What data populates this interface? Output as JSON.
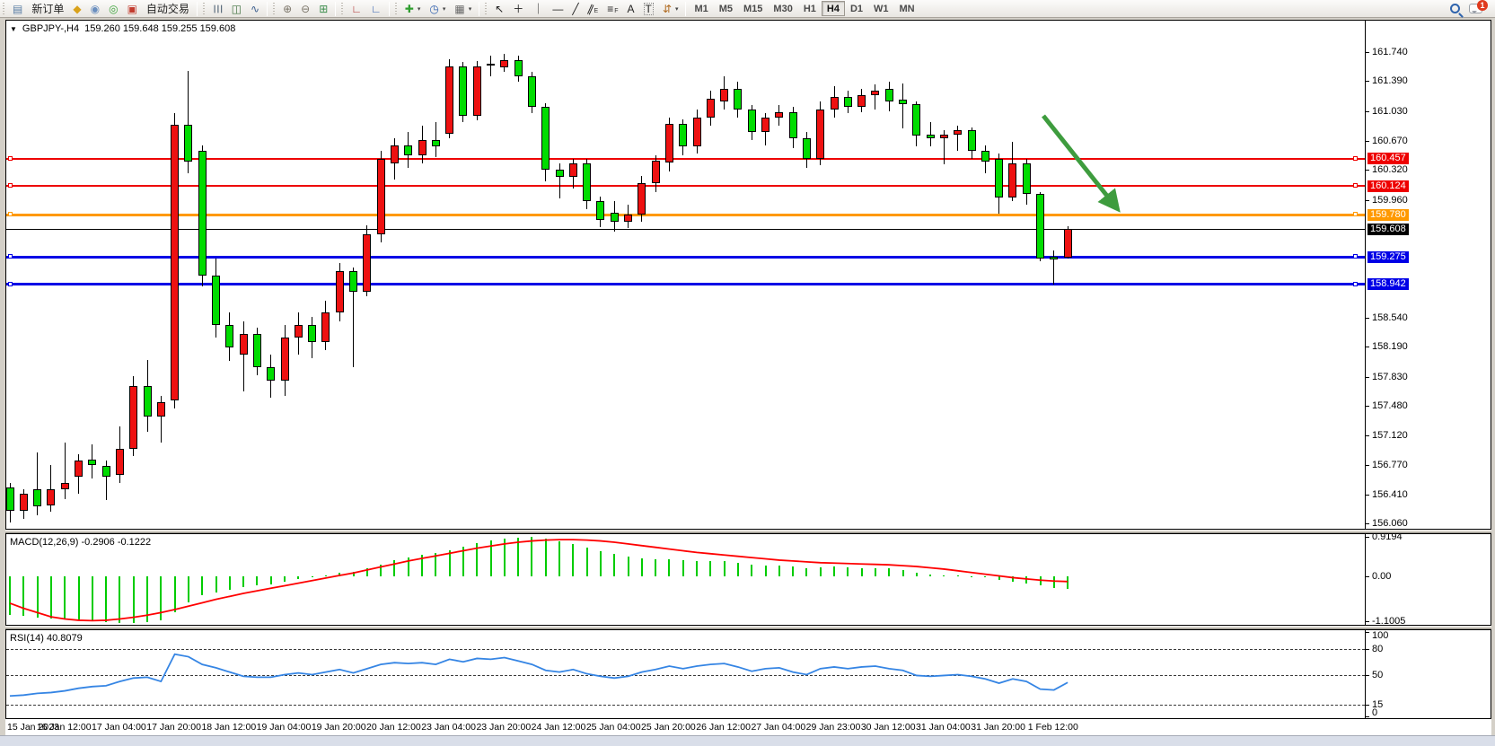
{
  "toolbar": {
    "groups": [
      {
        "items": [
          {
            "n": "window-menu-icon",
            "g": "▤",
            "c": "#5b7fa6"
          },
          {
            "n": "new-order-button",
            "l": "新订单"
          },
          {
            "n": "mql-community-icon",
            "g": "◆",
            "c": "#d9a21b"
          },
          {
            "n": "profile-icon",
            "g": "◉",
            "c": "#6b8fbf"
          },
          {
            "n": "signals-icon",
            "g": "◎",
            "c": "#3fa63f"
          },
          {
            "n": "autotrade-icon",
            "g": "▣",
            "c": "#c23b2e"
          },
          {
            "n": "autotrade-button",
            "l": "自动交易"
          }
        ]
      },
      {
        "items": [
          {
            "n": "bar-chart-icon",
            "g": "☰",
            "c": "#5a6b7c",
            "rot": 90
          },
          {
            "n": "candlestick-chart-icon",
            "g": "◫",
            "c": "#3c6e3c"
          },
          {
            "n": "line-chart-icon",
            "g": "∿",
            "c": "#3c5f8f"
          }
        ]
      },
      {
        "items": [
          {
            "n": "zoom-in-icon",
            "g": "⊕",
            "c": "#7a7468"
          },
          {
            "n": "zoom-out-icon",
            "g": "⊖",
            "c": "#7a7468"
          },
          {
            "n": "tile-windows-icon",
            "g": "⊞",
            "c": "#3f8f4f"
          }
        ]
      },
      {
        "items": [
          {
            "n": "auto-scroll-icon",
            "g": "∟",
            "c": "#b03030"
          },
          {
            "n": "chart-shift-icon",
            "g": "∟",
            "c": "#305fb0"
          }
        ]
      },
      {
        "items": [
          {
            "n": "add-indicator-icon",
            "g": "✚",
            "c": "#2f9e2f",
            "dd": true
          },
          {
            "n": "period-clock-icon",
            "g": "◷",
            "c": "#2f5fae",
            "dd": true
          },
          {
            "n": "template-icon",
            "g": "▦",
            "c": "#6a6a6a",
            "dd": true
          }
        ]
      },
      {
        "items": [
          {
            "n": "cursor-icon",
            "g": "↖",
            "c": "#222"
          },
          {
            "n": "crosshair-icon",
            "g": "＋",
            "c": "#222"
          },
          {
            "n": "vertical-line-icon",
            "g": "｜",
            "c": "#222"
          },
          {
            "n": "horizontal-line-icon",
            "g": "—",
            "c": "#222"
          },
          {
            "n": "trendline-icon",
            "g": "╱",
            "c": "#222"
          },
          {
            "n": "equidistant-channel-icon",
            "g": "∥",
            "c": "#222",
            "rot": 24,
            "sub": "E"
          },
          {
            "n": "fibonacci-icon",
            "g": "≡",
            "c": "#222",
            "sub": "F"
          },
          {
            "n": "text-icon",
            "g": "A",
            "c": "#222"
          },
          {
            "n": "text-label-icon",
            "g": "T",
            "c": "#222",
            "boxed": true
          },
          {
            "n": "arrows-shapes-icon",
            "g": "⇵",
            "c": "#b06a1f",
            "dd": true
          }
        ]
      }
    ],
    "timeframes": [
      "M1",
      "M5",
      "M15",
      "M30",
      "H1",
      "H4",
      "D1",
      "W1",
      "MN"
    ],
    "active_timeframe": "H4",
    "notification_badge": "1"
  },
  "chart": {
    "title_symbol": "GBPJPY-,H4",
    "title_ohlc": "159.260 159.648 159.255 159.608",
    "price_ticks": [
      "161.740",
      "161.390",
      "161.030",
      "160.670",
      "160.320",
      "159.960",
      "158.540",
      "158.190",
      "157.830",
      "157.480",
      "157.120",
      "156.770",
      "156.410",
      "156.060"
    ],
    "levels": [
      {
        "value": 159.608,
        "label": "159.608",
        "color": "#000000",
        "weight": 1,
        "handles": false
      },
      {
        "value": 160.457,
        "label": "160.457",
        "color": "#ee0000",
        "weight": 2,
        "handles": true
      },
      {
        "value": 160.124,
        "label": "160.124",
        "color": "#ee0000",
        "weight": 2,
        "handles": true
      },
      {
        "value": 159.78,
        "label": "159.780",
        "color": "#ff9900",
        "weight": 3,
        "handles": true
      },
      {
        "value": 159.275,
        "label": "159.275",
        "color": "#0000e6",
        "weight": 3,
        "handles": true
      },
      {
        "value": 158.942,
        "label": "158.942",
        "color": "#0000e6",
        "weight": 3,
        "handles": true
      }
    ],
    "up_color": "#ee1111",
    "down_color": "#00dc00",
    "arrow_color": "#3e9c3e"
  },
  "macd": {
    "label": "MACD(12,26,9)",
    "values": "-0.2906 -0.1222",
    "axis": [
      {
        "v": 0.9194,
        "t": "0.9194"
      },
      {
        "v": 0,
        "t": "0.00"
      },
      {
        "v": -1.1005,
        "t": "-1.1005"
      }
    ],
    "hist_color": "#00cc00",
    "signal_color": "#ff0000"
  },
  "rsi": {
    "label": "RSI(14)",
    "value": "40.8079",
    "axis": [
      {
        "v": 100,
        "t": "100",
        "dash": false
      },
      {
        "v": 80,
        "t": "80",
        "dash": true
      },
      {
        "v": 50,
        "t": "50",
        "dash": true
      },
      {
        "v": 15,
        "t": "15",
        "dash": true
      },
      {
        "v": 0,
        "t": "0",
        "dash": false
      }
    ],
    "line_color": "#3585e4"
  },
  "chart_data": {
    "type": "candlestick",
    "symbol": "GBPJPY-",
    "timeframe": "H4",
    "last_ohlc": {
      "open": 159.26,
      "high": 159.648,
      "low": 159.255,
      "close": 159.608
    },
    "y_range": [
      155.98,
      161.92
    ],
    "time_labels": [
      "15 Jan 2023",
      "16 Jan 12:00",
      "17 Jan 04:00",
      "17 Jan 20:00",
      "18 Jan 12:00",
      "19 Jan 04:00",
      "19 Jan 20:00",
      "20 Jan 12:00",
      "23 Jan 04:00",
      "23 Jan 20:00",
      "24 Jan 12:00",
      "25 Jan 04:00",
      "25 Jan 20:00",
      "26 Jan 12:00",
      "27 Jan 04:00",
      "29 Jan 23:00",
      "30 Jan 12:00",
      "31 Jan 04:00",
      "31 Jan 20:00",
      "1 Feb 12:00"
    ],
    "bars_per_label": 4,
    "candles": [
      [
        156.5,
        156.55,
        156.08,
        156.22
      ],
      [
        156.22,
        156.48,
        156.12,
        156.42
      ],
      [
        156.48,
        156.92,
        156.16,
        156.27
      ],
      [
        156.28,
        156.77,
        156.2,
        156.47
      ],
      [
        156.48,
        157.04,
        156.36,
        156.55
      ],
      [
        156.63,
        156.9,
        156.42,
        156.82
      ],
      [
        156.83,
        157.02,
        156.61,
        156.77
      ],
      [
        156.76,
        156.82,
        156.35,
        156.63
      ],
      [
        156.65,
        157.23,
        156.55,
        156.96
      ],
      [
        156.96,
        157.84,
        156.87,
        157.72
      ],
      [
        157.72,
        158.03,
        157.17,
        157.35
      ],
      [
        157.35,
        157.6,
        157.04,
        157.52
      ],
      [
        157.55,
        161.0,
        157.45,
        160.86
      ],
      [
        160.86,
        161.51,
        160.28,
        160.42
      ],
      [
        160.55,
        160.62,
        158.92,
        159.05
      ],
      [
        159.05,
        159.25,
        158.3,
        158.45
      ],
      [
        158.45,
        158.6,
        158.02,
        158.18
      ],
      [
        158.1,
        158.5,
        157.65,
        158.35
      ],
      [
        158.35,
        158.42,
        157.85,
        157.95
      ],
      [
        157.95,
        158.1,
        157.58,
        157.78
      ],
      [
        157.78,
        158.45,
        157.6,
        158.3
      ],
      [
        158.3,
        158.6,
        158.1,
        158.45
      ],
      [
        158.45,
        158.55,
        158.05,
        158.25
      ],
      [
        158.25,
        158.75,
        158.15,
        158.6
      ],
      [
        158.6,
        159.2,
        158.5,
        159.1
      ],
      [
        159.1,
        159.15,
        157.95,
        158.85
      ],
      [
        158.85,
        159.65,
        158.8,
        159.55
      ],
      [
        159.55,
        160.55,
        159.45,
        160.45
      ],
      [
        160.4,
        160.7,
        160.2,
        160.62
      ],
      [
        160.62,
        160.78,
        160.35,
        160.5
      ],
      [
        160.5,
        160.85,
        160.4,
        160.68
      ],
      [
        160.68,
        160.9,
        160.48,
        160.6
      ],
      [
        160.76,
        161.65,
        160.7,
        161.57
      ],
      [
        161.57,
        161.62,
        160.9,
        160.97
      ],
      [
        160.97,
        161.63,
        160.92,
        161.57
      ],
      [
        161.6,
        161.7,
        161.45,
        161.58
      ],
      [
        161.56,
        161.72,
        161.5,
        161.64
      ],
      [
        161.64,
        161.7,
        161.38,
        161.45
      ],
      [
        161.45,
        161.5,
        161.0,
        161.08
      ],
      [
        161.08,
        161.12,
        160.18,
        160.32
      ],
      [
        160.32,
        160.4,
        159.98,
        160.24
      ],
      [
        160.24,
        160.45,
        160.1,
        160.4
      ],
      [
        160.4,
        160.45,
        159.85,
        159.95
      ],
      [
        159.95,
        160.0,
        159.63,
        159.72
      ],
      [
        159.8,
        159.95,
        159.58,
        159.7
      ],
      [
        159.7,
        159.9,
        159.62,
        159.78
      ],
      [
        159.78,
        160.25,
        159.7,
        160.16
      ],
      [
        160.16,
        160.5,
        160.05,
        160.43
      ],
      [
        160.41,
        160.95,
        160.3,
        160.88
      ],
      [
        160.88,
        160.93,
        160.5,
        160.6
      ],
      [
        160.6,
        161.05,
        160.52,
        160.95
      ],
      [
        160.95,
        161.28,
        160.85,
        161.18
      ],
      [
        161.15,
        161.45,
        161.05,
        161.3
      ],
      [
        161.3,
        161.38,
        160.95,
        161.05
      ],
      [
        161.05,
        161.1,
        160.68,
        160.78
      ],
      [
        160.78,
        161.0,
        160.62,
        160.95
      ],
      [
        160.95,
        161.1,
        160.85,
        161.02
      ],
      [
        161.02,
        161.08,
        160.58,
        160.7
      ],
      [
        160.7,
        160.78,
        160.35,
        160.45
      ],
      [
        160.45,
        161.15,
        160.38,
        161.05
      ],
      [
        161.05,
        161.33,
        160.95,
        161.2
      ],
      [
        161.2,
        161.28,
        161.0,
        161.08
      ],
      [
        161.08,
        161.3,
        161.02,
        161.22
      ],
      [
        161.22,
        161.35,
        161.05,
        161.28
      ],
      [
        161.3,
        161.38,
        161.03,
        161.15
      ],
      [
        161.17,
        161.36,
        160.82,
        161.11
      ],
      [
        161.11,
        161.15,
        160.6,
        160.73
      ],
      [
        160.75,
        160.9,
        160.61,
        160.7
      ],
      [
        160.7,
        160.8,
        160.39,
        160.75
      ],
      [
        160.75,
        160.85,
        160.55,
        160.8
      ],
      [
        160.8,
        160.83,
        160.45,
        160.55
      ],
      [
        160.55,
        160.62,
        160.28,
        160.42
      ],
      [
        160.45,
        160.52,
        159.79,
        159.99
      ],
      [
        159.99,
        160.66,
        159.95,
        160.4
      ],
      [
        160.4,
        160.45,
        159.9,
        160.03
      ],
      [
        160.03,
        160.05,
        159.22,
        159.25
      ],
      [
        159.27,
        159.35,
        158.94,
        159.24
      ],
      [
        159.26,
        159.648,
        159.255,
        159.608
      ]
    ],
    "macd_hist": [
      -0.9,
      -0.93,
      -0.96,
      -0.99,
      -1.01,
      -1.03,
      -1.05,
      -1.07,
      -1.09,
      -1.1,
      -1.07,
      -1.03,
      -0.85,
      -0.62,
      -0.45,
      -0.38,
      -0.32,
      -0.26,
      -0.22,
      -0.18,
      -0.12,
      -0.06,
      -0.02,
      0.03,
      0.08,
      0.1,
      0.18,
      0.28,
      0.38,
      0.44,
      0.5,
      0.54,
      0.62,
      0.7,
      0.78,
      0.84,
      0.88,
      0.91,
      0.92,
      0.88,
      0.82,
      0.76,
      0.68,
      0.6,
      0.52,
      0.46,
      0.42,
      0.4,
      0.4,
      0.38,
      0.36,
      0.36,
      0.35,
      0.32,
      0.28,
      0.26,
      0.26,
      0.24,
      0.2,
      0.22,
      0.24,
      0.22,
      0.2,
      0.2,
      0.18,
      0.14,
      0.08,
      0.05,
      0.03,
      0.02,
      0.0,
      -0.03,
      -0.08,
      -0.12,
      -0.16,
      -0.22,
      -0.27,
      -0.2906
    ],
    "macd_signal": [
      -0.63,
      -0.75,
      -0.85,
      -0.95,
      -1.0,
      -1.03,
      -1.04,
      -1.03,
      -1.0,
      -0.96,
      -0.91,
      -0.85,
      -0.78,
      -0.7,
      -0.62,
      -0.54,
      -0.47,
      -0.4,
      -0.34,
      -0.28,
      -0.22,
      -0.16,
      -0.1,
      -0.04,
      0.02,
      0.08,
      0.15,
      0.22,
      0.29,
      0.36,
      0.42,
      0.48,
      0.54,
      0.6,
      0.66,
      0.71,
      0.76,
      0.8,
      0.83,
      0.85,
      0.86,
      0.86,
      0.85,
      0.83,
      0.8,
      0.76,
      0.72,
      0.68,
      0.64,
      0.6,
      0.56,
      0.53,
      0.5,
      0.47,
      0.44,
      0.41,
      0.38,
      0.36,
      0.34,
      0.32,
      0.31,
      0.3,
      0.29,
      0.28,
      0.27,
      0.25,
      0.23,
      0.2,
      0.17,
      0.13,
      0.09,
      0.05,
      0.01,
      -0.03,
      -0.06,
      -0.09,
      -0.11,
      -0.1222
    ],
    "rsi": [
      25,
      26,
      28,
      29,
      31,
      34,
      36,
      37,
      42,
      46,
      47,
      42,
      74,
      71,
      62,
      58,
      53,
      48,
      47,
      47,
      50,
      52,
      50,
      53,
      56,
      52,
      57,
      62,
      64,
      63,
      64,
      62,
      68,
      65,
      69,
      68,
      70,
      66,
      62,
      55,
      53,
      56,
      51,
      48,
      46,
      48,
      53,
      56,
      60,
      57,
      60,
      62,
      63,
      59,
      54,
      57,
      58,
      53,
      50,
      57,
      59,
      57,
      59,
      60,
      57,
      55,
      49,
      48,
      49,
      50,
      48,
      45,
      40,
      45,
      42,
      33,
      32,
      40.8
    ]
  }
}
